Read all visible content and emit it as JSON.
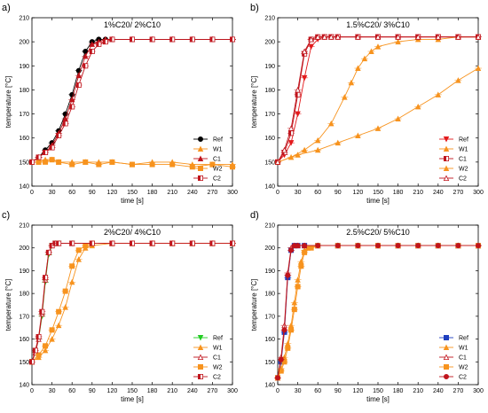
{
  "chart_data": [
    {
      "type": "line",
      "panel": "a)",
      "title": "1%C20/ 2%C10",
      "xlabel": "time [s]",
      "ylabel": "temperature [°C]",
      "xlim": [
        0,
        300
      ],
      "ylim": [
        140,
        210
      ],
      "xticks": [
        0,
        30,
        60,
        90,
        120,
        150,
        180,
        210,
        240,
        270,
        300
      ],
      "yticks": [
        140,
        150,
        160,
        170,
        180,
        190,
        200,
        210
      ],
      "grid": false,
      "legend_position": "right",
      "series": [
        {
          "name": "Ref",
          "color": "#000000",
          "marker": "circle",
          "x": [
            0,
            10,
            20,
            30,
            40,
            50,
            60,
            70,
            80,
            90,
            100,
            110,
            120,
            150,
            180,
            210,
            240,
            270,
            300
          ],
          "y": [
            150,
            152,
            155,
            158,
            163,
            170,
            178,
            188,
            196,
            200,
            201,
            201,
            201,
            201,
            201,
            201,
            201,
            201,
            201
          ]
        },
        {
          "name": "W1",
          "color": "#f7931e",
          "marker": "triangle-up",
          "x": [
            0,
            10,
            20,
            30,
            40,
            60,
            80,
            100,
            120,
            150,
            180,
            210,
            240,
            270,
            300
          ],
          "y": [
            150,
            150,
            151,
            151,
            150,
            150,
            150,
            150,
            150,
            149,
            150,
            150,
            149,
            149,
            149
          ]
        },
        {
          "name": "C1",
          "color": "#c0141c",
          "marker": "triangle-up",
          "x": [
            0,
            10,
            20,
            30,
            40,
            50,
            60,
            70,
            80,
            90,
            100,
            110,
            120,
            150,
            180,
            210,
            240,
            270,
            300
          ],
          "y": [
            150,
            152,
            154,
            157,
            162,
            168,
            176,
            186,
            194,
            199,
            200,
            201,
            201,
            201,
            201,
            201,
            201,
            201,
            201
          ]
        },
        {
          "name": "W2",
          "color": "#f7931e",
          "marker": "square",
          "x": [
            0,
            10,
            20,
            30,
            40,
            60,
            80,
            100,
            120,
            150,
            180,
            210,
            240,
            270,
            300
          ],
          "y": [
            150,
            150,
            150,
            151,
            150,
            149,
            150,
            149,
            150,
            149,
            149,
            149,
            148,
            149,
            148
          ]
        },
        {
          "name": "C2",
          "color": "#c0141c",
          "marker": "square-half",
          "x": [
            0,
            10,
            20,
            30,
            40,
            50,
            60,
            70,
            80,
            90,
            100,
            110,
            120,
            150,
            180,
            210,
            240,
            270,
            300
          ],
          "y": [
            150,
            152,
            154,
            156,
            161,
            166,
            173,
            182,
            190,
            196,
            199,
            200,
            201,
            201,
            201,
            201,
            201,
            201,
            201
          ]
        }
      ]
    },
    {
      "type": "line",
      "panel": "b)",
      "title": "1.5%C20/ 3%C10",
      "xlabel": "time [s]",
      "ylabel": "temperature [°C]",
      "xlim": [
        0,
        300
      ],
      "ylim": [
        140,
        210
      ],
      "xticks": [
        0,
        30,
        60,
        90,
        120,
        150,
        180,
        210,
        240,
        270,
        300
      ],
      "yticks": [
        140,
        150,
        160,
        170,
        180,
        190,
        200,
        210
      ],
      "grid": false,
      "legend_position": "right",
      "series": [
        {
          "name": "Ref",
          "color": "#e31a1c",
          "marker": "triangle-down",
          "x": [
            0,
            10,
            20,
            30,
            40,
            50,
            60,
            70,
            80,
            90,
            120,
            150,
            180,
            210,
            240,
            270,
            300
          ],
          "y": [
            150,
            153,
            158,
            170,
            185,
            198,
            201,
            202,
            202,
            202,
            202,
            202,
            202,
            202,
            202,
            202,
            202
          ]
        },
        {
          "name": "W1",
          "color": "#f7931e",
          "marker": "triangle-up",
          "x": [
            0,
            20,
            40,
            60,
            80,
            100,
            110,
            120,
            130,
            140,
            150,
            180,
            210,
            240,
            270,
            300
          ],
          "y": [
            150,
            152,
            155,
            159,
            166,
            177,
            183,
            189,
            193,
            196,
            198,
            200,
            201,
            201,
            202,
            202
          ]
        },
        {
          "name": "C1",
          "color": "#c0141c",
          "marker": "square-half",
          "x": [
            0,
            10,
            20,
            30,
            40,
            50,
            60,
            70,
            80,
            90,
            120,
            150,
            180,
            210,
            240,
            270,
            300
          ],
          "y": [
            150,
            154,
            162,
            178,
            195,
            201,
            202,
            202,
            202,
            202,
            202,
            202,
            202,
            202,
            202,
            202,
            202
          ]
        },
        {
          "name": "W2",
          "color": "#f7931e",
          "marker": "triangle-up",
          "x": [
            0,
            30,
            60,
            90,
            120,
            150,
            180,
            210,
            240,
            270,
            300
          ],
          "y": [
            150,
            153,
            155,
            158,
            161,
            164,
            168,
            173,
            178,
            184,
            189
          ]
        },
        {
          "name": "C2",
          "color": "#c0141c",
          "marker": "triangle-up-open",
          "x": [
            0,
            10,
            20,
            30,
            40,
            50,
            60,
            70,
            80,
            90,
            120,
            150,
            180,
            210,
            240,
            270,
            300
          ],
          "y": [
            150,
            155,
            164,
            180,
            196,
            201,
            202,
            202,
            202,
            202,
            202,
            202,
            202,
            202,
            202,
            202,
            202
          ]
        }
      ]
    },
    {
      "type": "line",
      "panel": "c)",
      "title": "2%C20/ 4%C10",
      "xlabel": "time [s]",
      "ylabel": "temperature [°C]",
      "xlim": [
        0,
        300
      ],
      "ylim": [
        140,
        210
      ],
      "xticks": [
        0,
        30,
        60,
        90,
        120,
        150,
        180,
        210,
        240,
        270,
        300
      ],
      "yticks": [
        140,
        150,
        160,
        170,
        180,
        190,
        200,
        210
      ],
      "grid": false,
      "legend_position": "right",
      "series": [
        {
          "name": "Ref",
          "color": "#22cc22",
          "marker": "triangle-down",
          "x": [
            0,
            5,
            10,
            15,
            20,
            25,
            30,
            35,
            40,
            60,
            90,
            120,
            150,
            180,
            210,
            240,
            270,
            300
          ],
          "y": [
            150,
            154,
            160,
            170,
            185,
            197,
            201,
            202,
            202,
            202,
            202,
            202,
            202,
            202,
            202,
            202,
            202,
            202
          ]
        },
        {
          "name": "W1",
          "color": "#f7931e",
          "marker": "triangle-up",
          "x": [
            0,
            10,
            20,
            30,
            40,
            50,
            60,
            70,
            80,
            90,
            120,
            150,
            180,
            210,
            240,
            270,
            300
          ],
          "y": [
            150,
            152,
            155,
            160,
            166,
            174,
            185,
            195,
            200,
            201,
            202,
            202,
            202,
            202,
            202,
            202,
            202
          ]
        },
        {
          "name": "C1",
          "color": "#c0141c",
          "marker": "triangle-up-open",
          "x": [
            0,
            5,
            10,
            15,
            20,
            25,
            30,
            35,
            40,
            60,
            90,
            120,
            150,
            180,
            210,
            240,
            270,
            300
          ],
          "y": [
            150,
            154,
            160,
            171,
            186,
            198,
            201,
            202,
            202,
            202,
            202,
            202,
            202,
            202,
            202,
            202,
            202,
            202
          ]
        },
        {
          "name": "W2",
          "color": "#f7931e",
          "marker": "square",
          "x": [
            0,
            10,
            20,
            30,
            40,
            50,
            60,
            70,
            80,
            90,
            120,
            150,
            180,
            210,
            240,
            270,
            300
          ],
          "y": [
            150,
            153,
            157,
            164,
            172,
            181,
            192,
            199,
            201,
            202,
            202,
            202,
            202,
            202,
            202,
            202,
            202
          ]
        },
        {
          "name": "C2",
          "color": "#c0141c",
          "marker": "square-half",
          "x": [
            0,
            5,
            10,
            15,
            20,
            25,
            30,
            35,
            40,
            60,
            90,
            120,
            150,
            180,
            210,
            240,
            270,
            300
          ],
          "y": [
            150,
            155,
            161,
            172,
            187,
            198,
            201,
            202,
            202,
            202,
            202,
            202,
            202,
            202,
            202,
            202,
            202,
            202
          ]
        }
      ]
    },
    {
      "type": "line",
      "panel": "d)",
      "title": "2.5%C20/ 5%C10",
      "xlabel": "time [s]",
      "ylabel": "temperature [°C]",
      "xlim": [
        0,
        300
      ],
      "ylim": [
        140,
        210
      ],
      "xticks": [
        0,
        30,
        60,
        90,
        120,
        150,
        180,
        210,
        240,
        270,
        300
      ],
      "yticks": [
        140,
        150,
        160,
        170,
        180,
        190,
        200,
        210
      ],
      "grid": false,
      "legend_position": "right",
      "series": [
        {
          "name": "Ref",
          "color": "#1f3fbf",
          "marker": "square",
          "x": [
            0,
            5,
            10,
            15,
            20,
            25,
            30,
            40,
            60,
            90,
            120,
            150,
            180,
            210,
            240,
            270,
            300
          ],
          "y": [
            143,
            150,
            163,
            187,
            199,
            201,
            201,
            201,
            201,
            201,
            201,
            201,
            201,
            201,
            201,
            201,
            201
          ]
        },
        {
          "name": "W1",
          "color": "#f7931e",
          "marker": "triangle-up",
          "x": [
            0,
            5,
            10,
            15,
            20,
            25,
            30,
            35,
            40,
            45,
            60,
            90,
            120,
            150,
            180,
            210,
            240,
            270,
            300
          ],
          "y": [
            143,
            147,
            152,
            158,
            166,
            176,
            186,
            194,
            199,
            200,
            201,
            201,
            201,
            201,
            201,
            201,
            201,
            201,
            201
          ]
        },
        {
          "name": "C1",
          "color": "#c0141c",
          "marker": "triangle-up-open",
          "x": [
            0,
            5,
            10,
            15,
            20,
            25,
            30,
            40,
            60,
            90,
            120,
            150,
            180,
            210,
            240,
            270,
            300
          ],
          "y": [
            143,
            152,
            166,
            189,
            200,
            201,
            201,
            201,
            201,
            201,
            201,
            201,
            201,
            201,
            201,
            201,
            201
          ]
        },
        {
          "name": "W2",
          "color": "#f7931e",
          "marker": "square",
          "x": [
            0,
            5,
            10,
            15,
            20,
            25,
            30,
            35,
            40,
            50,
            60,
            90,
            120,
            150,
            180,
            210,
            240,
            270,
            300
          ],
          "y": [
            143,
            146,
            150,
            156,
            164,
            173,
            183,
            192,
            198,
            200,
            201,
            201,
            201,
            201,
            201,
            201,
            201,
            201,
            201
          ]
        },
        {
          "name": "C2",
          "color": "#c0141c",
          "marker": "circle-half",
          "x": [
            0,
            5,
            10,
            15,
            20,
            25,
            30,
            40,
            60,
            90,
            120,
            150,
            180,
            210,
            240,
            270,
            300
          ],
          "y": [
            143,
            151,
            164,
            188,
            199,
            201,
            201,
            201,
            201,
            201,
            201,
            201,
            201,
            201,
            201,
            201,
            201
          ]
        }
      ]
    }
  ]
}
